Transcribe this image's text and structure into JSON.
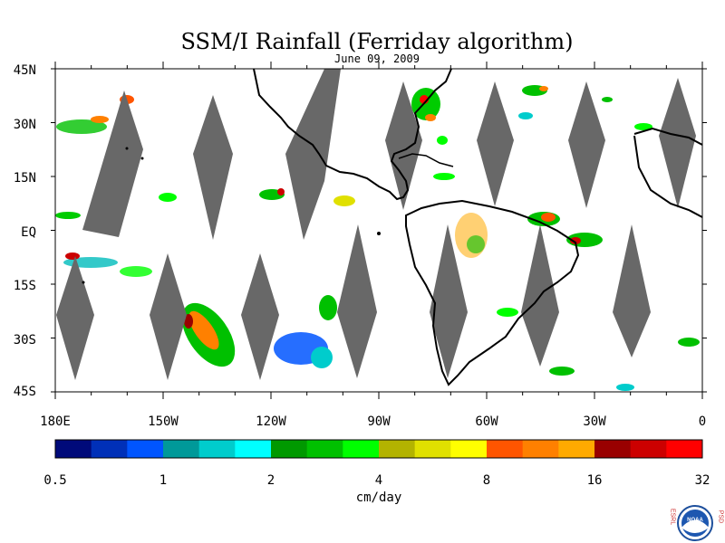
{
  "title": "SSM/I Rainfall (Ferriday algorithm)",
  "date": "June 09, 2009",
  "lat_labels": [
    "45N",
    "30N",
    "15N",
    "EQ",
    "15S",
    "30S",
    "45S"
  ],
  "lon_labels": [
    "180E",
    "150W",
    "120W",
    "90W",
    "60W",
    "30W",
    "0"
  ],
  "colorbar": {
    "unit": "cm/day",
    "tick_labels": [
      "0.5",
      "1",
      "2",
      "4",
      "8",
      "16",
      "32"
    ],
    "colors": [
      "#000a7a",
      "#0030b8",
      "#0055ff",
      "#009999",
      "#00cccc",
      "#00ffff",
      "#009900",
      "#00c000",
      "#00ff00",
      "#b3b300",
      "#e0e000",
      "#ffff00",
      "#ff5500",
      "#ff8000",
      "#ffaa00",
      "#990000",
      "#cc0000",
      "#ff0000"
    ]
  },
  "logo": {
    "left_text": "ESRL",
    "right_text": "PSD",
    "center_text": "NOAA"
  },
  "colors": {
    "swath_gap": "#686868",
    "coastline": "#000000"
  }
}
